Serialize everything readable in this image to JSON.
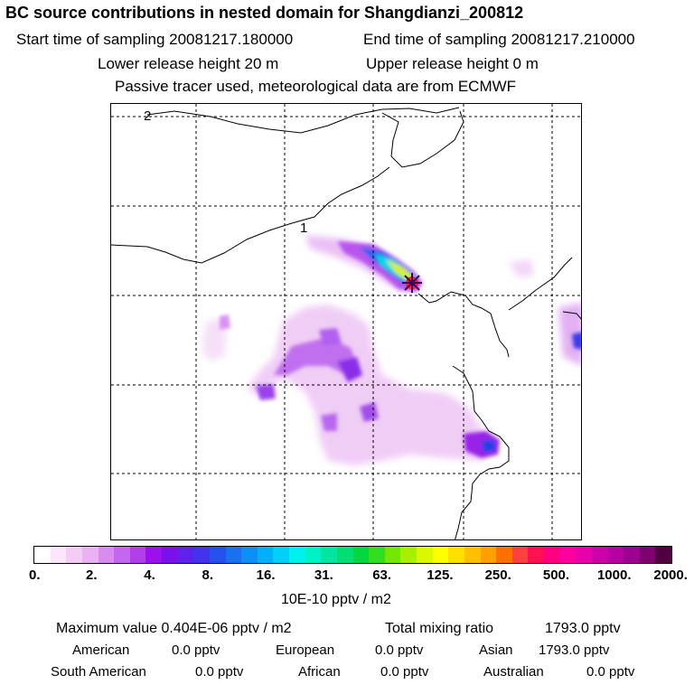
{
  "header": {
    "title": "BC  source contributions in nested domain for Shangdianzi_200812",
    "start_label": "Start time of sampling 20081217.180000",
    "end_label": "End time of sampling 20081217.210000",
    "lower_label": "Lower release height   20 m",
    "upper_label": "Upper release height    0 m",
    "passive_label": "Passive tracer used, meteorological data are from ECMWF"
  },
  "map": {
    "contour_labels": [
      "2",
      "1"
    ],
    "receptor_marker": "star-icon",
    "colors": {
      "coastline": "#000000",
      "grid": "#000000",
      "receptor": "#ff0000"
    }
  },
  "colorbar": {
    "colors": [
      "#ffffff",
      "#fbe6fb",
      "#f4ccf6",
      "#eab2f3",
      "#d98cf0",
      "#c466ee",
      "#b040ee",
      "#9a10ee",
      "#7a10ee",
      "#6020ee",
      "#4433ee",
      "#2850f0",
      "#1a70f2",
      "#0a90f6",
      "#00b0fa",
      "#00d0f8",
      "#00f0f0",
      "#00f0c8",
      "#00e6a0",
      "#00e070",
      "#00d840",
      "#30e020",
      "#70e800",
      "#a8f000",
      "#dcf800",
      "#ffff00",
      "#ffe000",
      "#ffc000",
      "#ffa000",
      "#ff7000",
      "#ff4040",
      "#ff1050",
      "#ff0080",
      "#ff00a0",
      "#e800a8",
      "#d000a8",
      "#b800a0",
      "#a00090",
      "#800070",
      "#500040"
    ],
    "tick_labels": [
      "0.",
      "2.",
      "4.",
      "8.",
      "16.",
      "31.",
      "63.",
      "125.",
      "250.",
      "500.",
      "1000.",
      "2000."
    ],
    "unit": "10E-10 pptv / m2"
  },
  "stats": {
    "max_label": "Maximum value  0.404E-06 pptv / m2",
    "total_label": "Total mixing ratio",
    "total_value": "1793.0 pptv",
    "american_label": "American",
    "american_value": "0.0 pptv",
    "european_label": "European",
    "european_value": "0.0 pptv",
    "asian_label": "Asian",
    "asian_value": "1793.0 pptv",
    "south_american_label": "South American",
    "south_american_value": "0.0 pptv",
    "african_label": "African",
    "african_value": "0.0 pptv",
    "australian_label": "Australian",
    "australian_value": "0.0 pptv"
  }
}
